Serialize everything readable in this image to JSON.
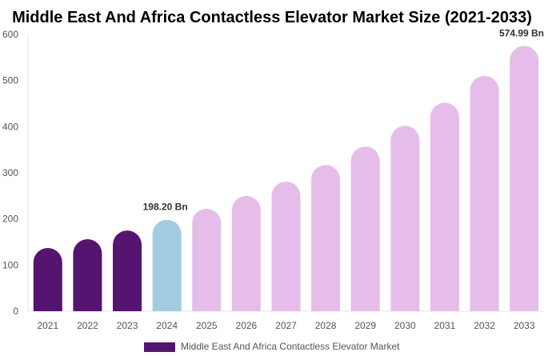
{
  "chart_data": {
    "type": "bar",
    "title": "Middle East And Africa Contactless Elevator Market Size (2021-2033)",
    "categories": [
      "2021",
      "2022",
      "2023",
      "2024",
      "2025",
      "2026",
      "2027",
      "2028",
      "2029",
      "2030",
      "2031",
      "2032",
      "2033"
    ],
    "series": [
      {
        "name": "Middle East And Africa Contactless Elevator Market",
        "values": [
          137,
          156,
          175,
          198.2,
          222,
          250,
          281,
          317,
          357,
          402,
          452,
          510,
          574.99
        ]
      }
    ],
    "data_labels": {
      "3": "198.20 Bn",
      "12": "574.99 Bn"
    },
    "ylim": [
      0,
      600
    ],
    "yticks": [
      "0",
      "100",
      "200",
      "300",
      "400",
      "500",
      "600"
    ],
    "grid": false,
    "legend": "bottom",
    "colors": {
      "historical": "#541470",
      "base_year": "#a3cbe0",
      "forecast": "#e6bde9"
    }
  }
}
